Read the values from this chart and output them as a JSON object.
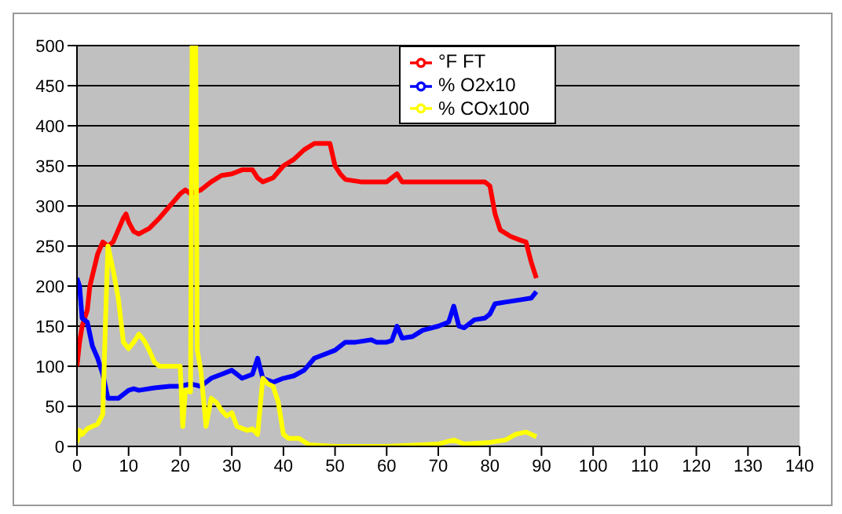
{
  "chart_data": {
    "type": "line",
    "xlim": [
      0,
      140
    ],
    "xticks": [
      0,
      10,
      20,
      30,
      40,
      50,
      60,
      70,
      80,
      90,
      100,
      110,
      120,
      130,
      140
    ],
    "ylim": [
      0,
      500
    ],
    "yticks": [
      0,
      50,
      100,
      150,
      200,
      250,
      300,
      350,
      400,
      450,
      500
    ],
    "grid": "y",
    "legend": "top",
    "marker": "none",
    "line_style": "solid",
    "series": [
      {
        "name": "°F FT",
        "color": "#ff0000",
        "x": [
          0,
          0.5,
          1,
          2,
          2.5,
          4,
          5,
          6,
          7,
          8,
          9,
          9.5,
          10,
          11,
          12,
          14,
          16,
          18,
          20,
          21,
          22,
          24,
          26,
          28,
          30,
          32,
          34,
          35,
          36,
          38,
          40,
          42,
          44,
          46,
          48,
          49,
          50,
          51,
          52,
          55,
          60,
          62,
          63,
          66,
          70,
          75,
          79,
          80,
          81,
          82,
          84,
          86,
          87,
          88,
          89
        ],
        "values": [
          100,
          130,
          150,
          170,
          200,
          240,
          255,
          250,
          255,
          270,
          285,
          290,
          280,
          268,
          265,
          272,
          285,
          300,
          315,
          320,
          315,
          320,
          330,
          338,
          340,
          345,
          345,
          335,
          330,
          335,
          350,
          358,
          370,
          378,
          378,
          378,
          350,
          340,
          333,
          330,
          330,
          340,
          330,
          330,
          330,
          330,
          330,
          325,
          290,
          270,
          262,
          257,
          255,
          230,
          210
        ]
      },
      {
        "name": "% O2x10",
        "color": "#0000ff",
        "x": [
          0,
          0.5,
          1,
          2,
          3,
          4,
          5,
          5.5,
          6,
          8,
          10,
          11,
          12,
          15,
          18,
          20,
          22,
          24,
          26,
          28,
          30,
          32,
          34,
          35,
          36,
          38,
          40,
          42,
          44,
          46,
          48,
          50,
          52,
          54,
          57,
          58,
          60,
          61,
          62,
          63,
          65,
          67,
          70,
          72,
          73,
          74,
          75,
          77,
          79,
          80,
          81,
          83,
          86,
          88,
          89
        ],
        "values": [
          210,
          200,
          160,
          155,
          125,
          110,
          90,
          75,
          60,
          60,
          70,
          72,
          70,
          73,
          75,
          75,
          78,
          75,
          85,
          90,
          95,
          85,
          90,
          110,
          85,
          80,
          85,
          88,
          95,
          110,
          115,
          120,
          130,
          130,
          133,
          130,
          130,
          132,
          150,
          135,
          137,
          145,
          150,
          155,
          175,
          150,
          148,
          158,
          160,
          165,
          178,
          180,
          183,
          185,
          193
        ]
      },
      {
        "name": "% COx100",
        "color": "#ffff00",
        "x": [
          0,
          0.5,
          1,
          2,
          4,
          5,
          5.5,
          6,
          7,
          8,
          9,
          10,
          11,
          12,
          13,
          14,
          15,
          16,
          20,
          20.5,
          21,
          22,
          22.3,
          23,
          23.3,
          24,
          25,
          26,
          27,
          28,
          29,
          30,
          31,
          33,
          34,
          35,
          36,
          37,
          38,
          39,
          40,
          41,
          43,
          45,
          50,
          60,
          70,
          73,
          75,
          80,
          83,
          85,
          87,
          89
        ],
        "values": [
          5,
          20,
          15,
          22,
          28,
          40,
          150,
          250,
          220,
          185,
          130,
          122,
          130,
          140,
          132,
          120,
          105,
          100,
          100,
          25,
          70,
          68,
          500,
          500,
          120,
          95,
          25,
          60,
          55,
          45,
          38,
          42,
          25,
          20,
          22,
          15,
          85,
          78,
          75,
          55,
          15,
          10,
          10,
          2,
          0,
          0,
          3,
          8,
          3,
          5,
          8,
          15,
          18,
          12
        ]
      }
    ]
  }
}
